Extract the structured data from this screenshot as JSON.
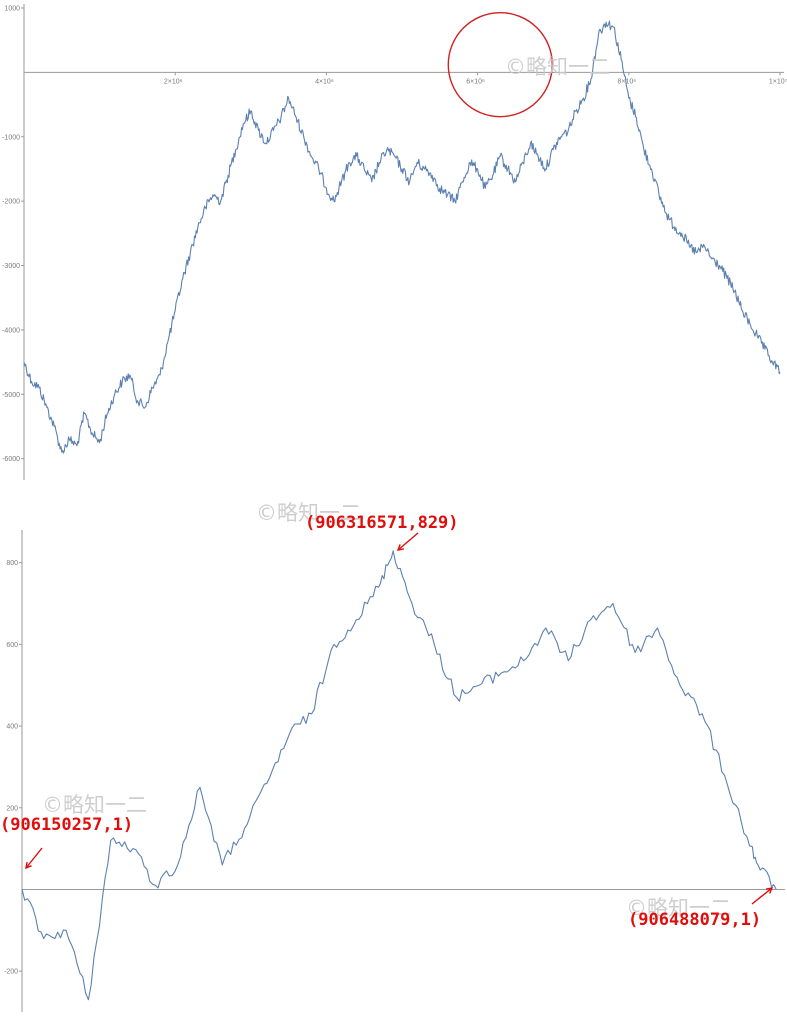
{
  "watermark": "©略知一二",
  "chart_data": [
    {
      "type": "line",
      "title": "",
      "xlabel": "",
      "ylabel": "",
      "xlim": [
        0,
        10000000
      ],
      "ylim": [
        -6300,
        1000
      ],
      "x_ticks": [
        {
          "value": 2000000,
          "label": "2×10⁶"
        },
        {
          "value": 4000000,
          "label": "4×10⁶"
        },
        {
          "value": 6000000,
          "label": "6×10⁶"
        },
        {
          "value": 8000000,
          "label": "8×10⁶"
        },
        {
          "value": 10000000,
          "label": "1×10⁷"
        }
      ],
      "y_ticks": [
        {
          "value": 1000,
          "label": "1000"
        },
        {
          "value": -1000,
          "label": "-1000"
        },
        {
          "value": -2000,
          "label": "-2000"
        },
        {
          "value": -3000,
          "label": "-3000"
        },
        {
          "value": -4000,
          "label": "-4000"
        },
        {
          "value": -5000,
          "label": "-5000"
        },
        {
          "value": -6000,
          "label": "-6000"
        }
      ],
      "grid": false,
      "series": [
        {
          "color": "#5c81b1",
          "x": [
            0,
            100000,
            200000,
            300000,
            400000,
            500000,
            600000,
            700000,
            800000,
            900000,
            1000000,
            1100000,
            1200000,
            1300000,
            1400000,
            1500000,
            1600000,
            1700000,
            1800000,
            1900000,
            2000000,
            2100000,
            2200000,
            2300000,
            2400000,
            2500000,
            2600000,
            2700000,
            2800000,
            2900000,
            3000000,
            3100000,
            3200000,
            3300000,
            3400000,
            3500000,
            3600000,
            3700000,
            3800000,
            3900000,
            4000000,
            4100000,
            4200000,
            4300000,
            4400000,
            4500000,
            4600000,
            4700000,
            4800000,
            4900000,
            5000000,
            5100000,
            5200000,
            5300000,
            5400000,
            5500000,
            5600000,
            5700000,
            5800000,
            5900000,
            6000000,
            6100000,
            6200000,
            6300000,
            6400000,
            6500000,
            6600000,
            6700000,
            6800000,
            6900000,
            7000000,
            7100000,
            7200000,
            7300000,
            7400000,
            7500000,
            7600000,
            7700000,
            7800000,
            7900000,
            8000000,
            8100000,
            8200000,
            8300000,
            8400000,
            8500000,
            8600000,
            8700000,
            8800000,
            8900000,
            9000000,
            9100000,
            9200000,
            9300000,
            9400000,
            9500000,
            9600000,
            9700000,
            9800000,
            9900000,
            10000000
          ],
          "values": [
            -4500,
            -4800,
            -4900,
            -5200,
            -5500,
            -5900,
            -5700,
            -5800,
            -5300,
            -5600,
            -5750,
            -5300,
            -5000,
            -4800,
            -4700,
            -5100,
            -5200,
            -4900,
            -4700,
            -4200,
            -3700,
            -3200,
            -2800,
            -2400,
            -2100,
            -1900,
            -2000,
            -1600,
            -1200,
            -800,
            -600,
            -900,
            -1100,
            -900,
            -700,
            -400,
            -700,
            -1000,
            -1300,
            -1500,
            -1800,
            -2000,
            -1700,
            -1400,
            -1300,
            -1500,
            -1700,
            -1400,
            -1200,
            -1300,
            -1500,
            -1700,
            -1400,
            -1500,
            -1600,
            -1800,
            -1900,
            -2000,
            -1700,
            -1400,
            -1500,
            -1800,
            -1600,
            -1300,
            -1500,
            -1700,
            -1400,
            -1100,
            -1300,
            -1500,
            -1200,
            -1000,
            -900,
            -600,
            -400,
            -100,
            600,
            780,
            700,
            200,
            -400,
            -700,
            -1200,
            -1500,
            -1900,
            -2200,
            -2400,
            -2500,
            -2700,
            -2800,
            -2700,
            -2900,
            -3000,
            -3200,
            -3400,
            -3700,
            -3900,
            -4100,
            -4300,
            -4500,
            -4650
          ]
        }
      ],
      "annotations": [
        {
          "type": "circle",
          "x": 6300000,
          "y": 120
        }
      ]
    },
    {
      "type": "line",
      "title": "",
      "xlabel": "",
      "ylabel": "",
      "xlim": [
        906150257,
        906488079
      ],
      "ylim": [
        -300,
        880
      ],
      "y_ticks": [
        {
          "value": 800,
          "label": "800"
        },
        {
          "value": 600,
          "label": "600"
        },
        {
          "value": 400,
          "label": "400"
        },
        {
          "value": 200,
          "label": "200"
        },
        {
          "value": -200,
          "label": "-200"
        }
      ],
      "grid": false,
      "series": [
        {
          "color": "#5c81b1",
          "x": [
            906150257,
            906160000,
            906170000,
            906180000,
            906190000,
            906200000,
            906210000,
            906220000,
            906230000,
            906240000,
            906250000,
            906260000,
            906270000,
            906280000,
            906290000,
            906300000,
            906310000,
            906316571,
            906325000,
            906335000,
            906345000,
            906355000,
            906365000,
            906375000,
            906385000,
            906395000,
            906405000,
            906415000,
            906425000,
            906435000,
            906445000,
            906455000,
            906465000,
            906475000,
            906480000,
            906488079
          ],
          "values": [
            1,
            -120,
            -100,
            -270,
            120,
            100,
            10,
            60,
            250,
            60,
            150,
            260,
            380,
            430,
            600,
            660,
            740,
            829,
            700,
            600,
            470,
            500,
            530,
            560,
            640,
            560,
            660,
            700,
            580,
            640,
            500,
            430,
            280,
            130,
            60,
            1
          ]
        }
      ],
      "annotations": [
        {
          "type": "point-label",
          "x": 906150257,
          "y": 1,
          "text": "(906150257,1)"
        },
        {
          "type": "point-label",
          "x": 906316571,
          "y": 829,
          "text": "(906316571,829)"
        },
        {
          "type": "point-label",
          "x": 906488079,
          "y": 1,
          "text": "(906488079,1)"
        }
      ]
    }
  ]
}
